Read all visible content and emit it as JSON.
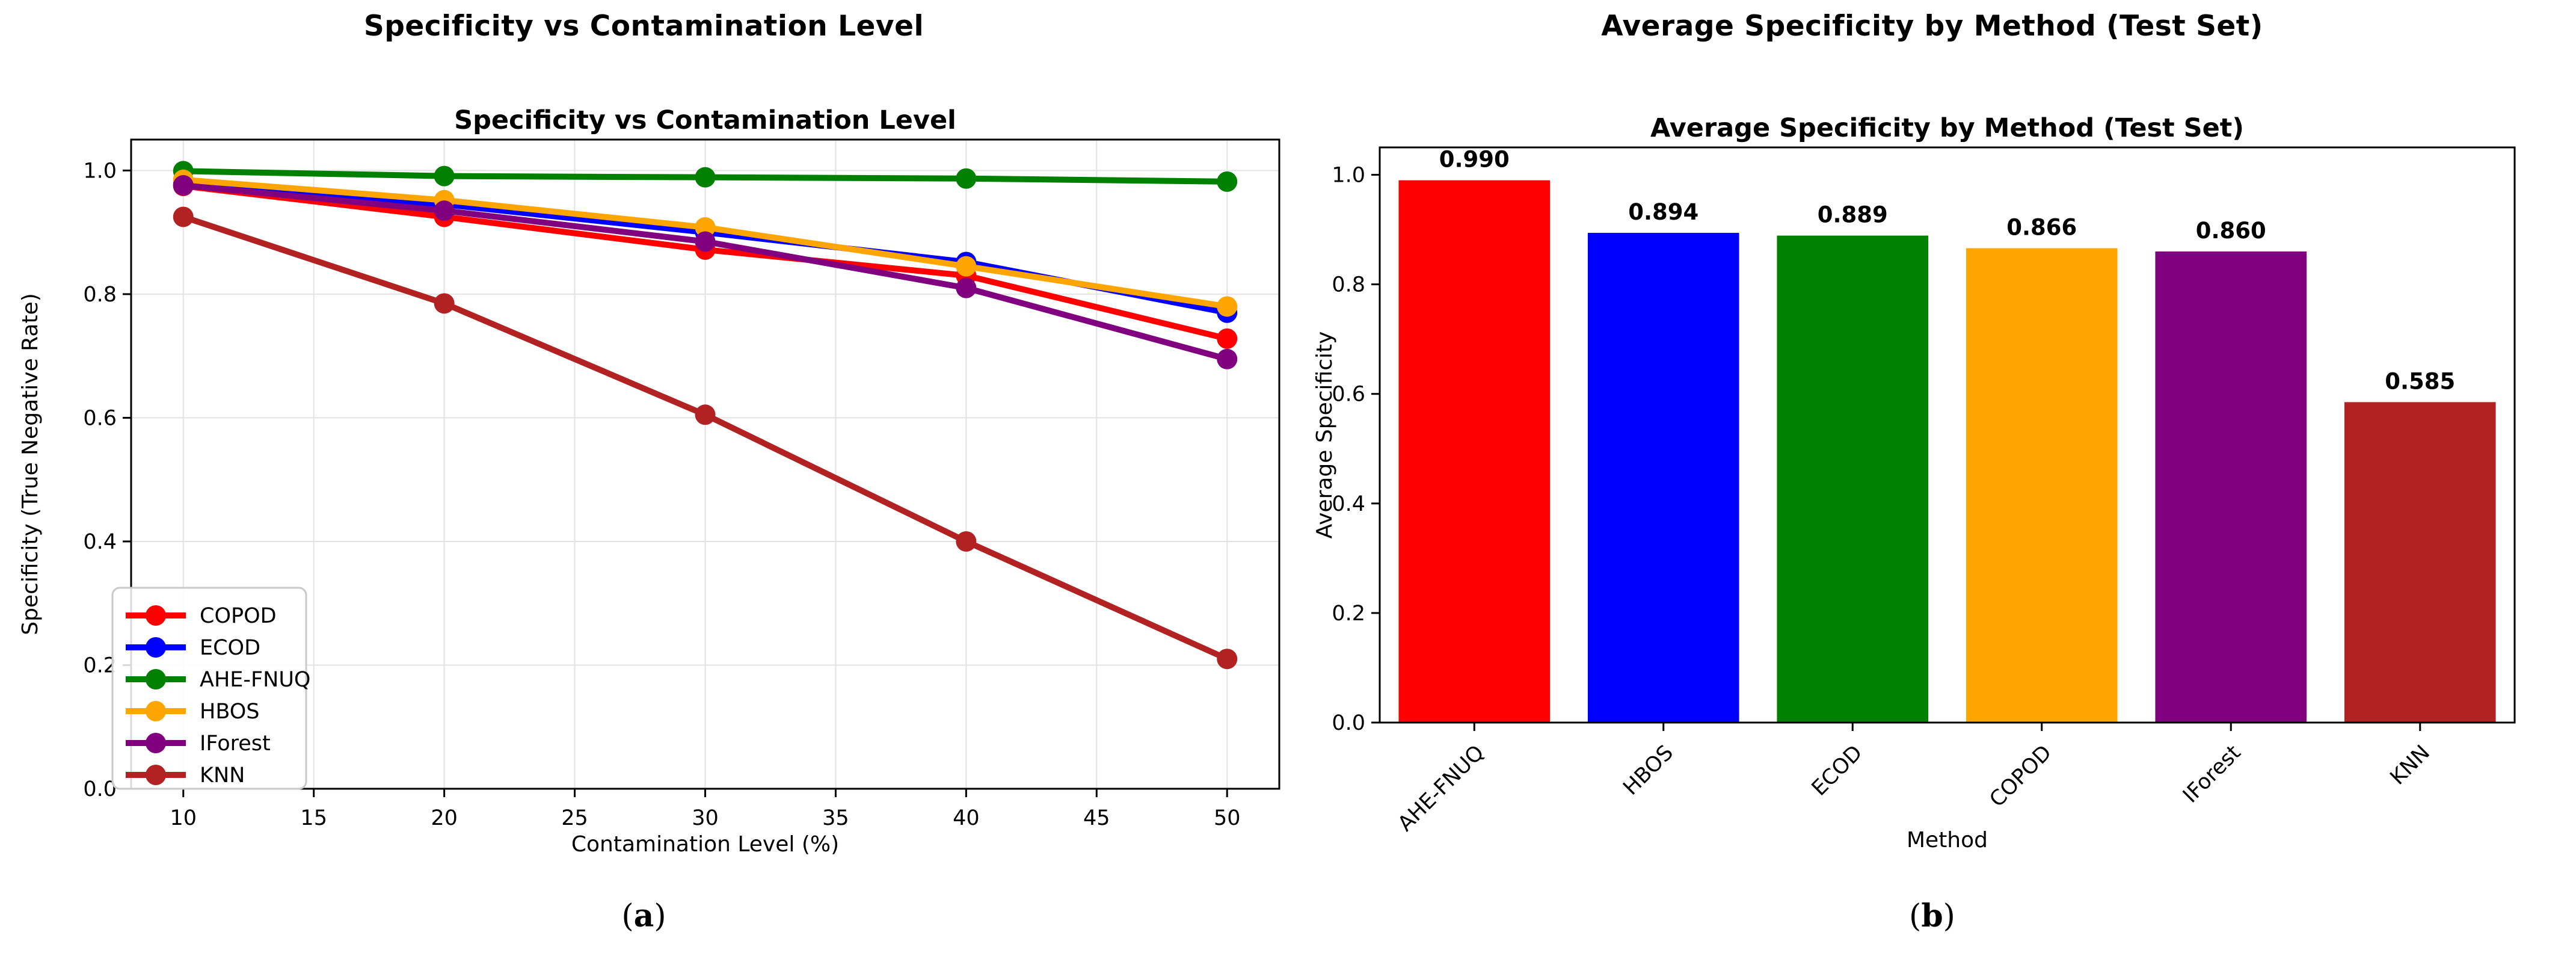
{
  "figure": {
    "panels": {
      "a": {
        "figure_title": "Specificity vs Contamination Level",
        "caption": {
          "open": "(",
          "letter": "a",
          "close": ")"
        }
      },
      "b": {
        "figure_title": "Average Specificity by Method (Test Set)",
        "caption": {
          "open": "(",
          "letter": "b",
          "close": ")"
        }
      }
    }
  },
  "chart_data": [
    {
      "type": "line",
      "title": "Specificity vs Contamination Level",
      "xlabel": "Contamination Level (%)",
      "ylabel": "Specificity (True Negative Rate)",
      "x": [
        10,
        20,
        30,
        40,
        50
      ],
      "xticks": [
        10,
        15,
        20,
        25,
        30,
        35,
        40,
        45,
        50
      ],
      "yticks": [
        0.0,
        0.2,
        0.4,
        0.6,
        0.8,
        1.0
      ],
      "xlim": [
        8,
        52
      ],
      "ylim": [
        0,
        1.05
      ],
      "grid": true,
      "legend_position": "lower-left",
      "series": [
        {
          "name": "COPOD",
          "color": "#ff0000",
          "values": [
            0.975,
            0.925,
            0.872,
            0.83,
            0.728
          ]
        },
        {
          "name": "ECOD",
          "color": "#0000ff",
          "values": [
            0.978,
            0.945,
            0.9,
            0.852,
            0.77
          ]
        },
        {
          "name": "AHE-FNUQ",
          "color": "#008000",
          "values": [
            0.999,
            0.991,
            0.989,
            0.987,
            0.982
          ]
        },
        {
          "name": "HBOS",
          "color": "#ffa500",
          "values": [
            0.985,
            0.952,
            0.908,
            0.845,
            0.78
          ]
        },
        {
          "name": "IForest",
          "color": "#800080",
          "values": [
            0.976,
            0.935,
            0.885,
            0.81,
            0.695
          ]
        },
        {
          "name": "KNN",
          "color": "#b22222",
          "values": [
            0.925,
            0.785,
            0.605,
            0.4,
            0.21
          ]
        }
      ]
    },
    {
      "type": "bar",
      "title": "Average Specificity by Method (Test Set)",
      "xlabel": "Method",
      "ylabel": "Average Specificity",
      "categories": [
        "AHE-FNUQ",
        "HBOS",
        "ECOD",
        "COPOD",
        "IForest",
        "KNN"
      ],
      "values": [
        0.99,
        0.894,
        0.889,
        0.866,
        0.86,
        0.585
      ],
      "bar_labels": [
        "0.990",
        "0.894",
        "0.889",
        "0.866",
        "0.860",
        "0.585"
      ],
      "colors": [
        "#ff0000",
        "#0000ff",
        "#008000",
        "#ffa500",
        "#800080",
        "#b22222"
      ],
      "yticks": [
        0.0,
        0.2,
        0.4,
        0.6,
        0.8,
        1.0
      ],
      "ylim": [
        0,
        1.05
      ],
      "grid": false,
      "tick_rotation": 45
    }
  ]
}
